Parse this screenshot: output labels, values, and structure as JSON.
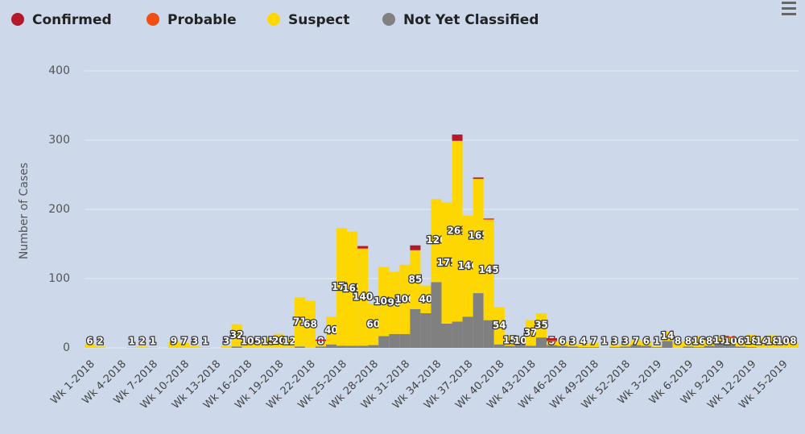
{
  "chart_data": {
    "type": "stacked_bar",
    "y_axis_title": "Number of Cases",
    "categories": [
      "Wk 1-2018",
      null,
      null,
      "Wk 4-2018",
      null,
      null,
      "Wk 7-2018",
      null,
      null,
      "Wk 10-2018",
      null,
      null,
      "Wk 13-2018",
      null,
      null,
      "Wk 16-2018",
      null,
      null,
      "Wk 19-2018",
      null,
      null,
      "Wk 22-2018",
      null,
      null,
      "Wk 25-2018",
      null,
      null,
      "Wk 28-2018",
      null,
      null,
      "Wk 31-2018",
      null,
      null,
      "Wk 34-2018",
      null,
      null,
      "Wk 37-2018",
      null,
      null,
      "Wk 40-2018",
      null,
      null,
      "Wk 43-2018",
      null,
      null,
      "Wk 46-2018",
      null,
      null,
      "Wk 49-2018",
      null,
      null,
      "Wk 52-2018",
      null,
      null,
      "Wk 3-2019",
      null,
      null,
      "Wk 6-2019",
      null,
      null,
      "Wk 9-2019",
      null,
      null,
      "Wk 12-2019",
      null,
      null,
      "Wk 15-2019",
      null
    ],
    "series": [
      {
        "name": "Confirmed",
        "color": "#b5172b",
        "values": [
          0,
          0,
          0,
          0,
          0,
          0,
          0,
          0,
          0,
          0,
          0,
          0,
          0,
          0,
          0,
          0,
          0,
          0,
          0,
          0,
          0,
          0,
          2,
          0,
          0,
          0,
          3,
          0,
          0,
          0,
          0,
          7,
          0,
          0,
          0,
          9,
          0,
          2,
          0,
          0,
          0,
          0,
          0,
          0,
          3,
          0,
          0,
          0,
          0,
          0,
          0,
          0,
          0,
          0,
          0,
          0,
          0,
          0,
          0,
          0,
          0,
          0,
          0,
          0,
          0,
          0,
          0,
          0
        ]
      },
      {
        "name": "Probable",
        "color": "#f04e13",
        "values": [
          0,
          0,
          0,
          0,
          0,
          0,
          0,
          0,
          0,
          0,
          0,
          0,
          0,
          0,
          0,
          0,
          0,
          0,
          0,
          0,
          0,
          0,
          0,
          0,
          0,
          0,
          1,
          0,
          0,
          0,
          0,
          0,
          0,
          0,
          0,
          0,
          0,
          0,
          2,
          0,
          0,
          0,
          0,
          0,
          2,
          0,
          0,
          0,
          0,
          0,
          0,
          0,
          0,
          0,
          0,
          0,
          0,
          0,
          0,
          0,
          0,
          2,
          0,
          0,
          0,
          0,
          0,
          0
        ]
      },
      {
        "name": "Suspect",
        "color": "#ffd700",
        "values": [
          6,
          2,
          0,
          0,
          1,
          2,
          1,
          0,
          9,
          7,
          3,
          1,
          0,
          3,
          32,
          10,
          5,
          15,
          20,
          12,
          71,
          68,
          8,
          40,
          170,
          165,
          140,
          60,
          100,
          90,
          100,
          85,
          40,
          120,
          175,
          261,
          146,
          165,
          145,
          54,
          15,
          10,
          37,
          35,
          5,
          6,
          3,
          4,
          7,
          1,
          3,
          3,
          7,
          6,
          1,
          14,
          8,
          8,
          16,
          8,
          11,
          10,
          6,
          18,
          14,
          18,
          10,
          8
        ]
      },
      {
        "name": "Not Yet Classified",
        "color": "#808080",
        "values": [
          0,
          0,
          0,
          0,
          0,
          0,
          0,
          0,
          0,
          0,
          0,
          0,
          0,
          0,
          2,
          0,
          0,
          0,
          0,
          0,
          2,
          0,
          2,
          5,
          3,
          3,
          3,
          4,
          17,
          20,
          20,
          56,
          50,
          95,
          35,
          38,
          45,
          79,
          40,
          5,
          3,
          5,
          3,
          15,
          4,
          3,
          2,
          1,
          1,
          0,
          1,
          2,
          4,
          3,
          1,
          10,
          0,
          2,
          1,
          3,
          5,
          4,
          2,
          1,
          0,
          0,
          0,
          0
        ]
      }
    ],
    "ylim": [
      0,
      400
    ],
    "yticks": [
      0,
      100,
      200,
      300,
      400
    ],
    "grid": true,
    "legend": "top"
  }
}
